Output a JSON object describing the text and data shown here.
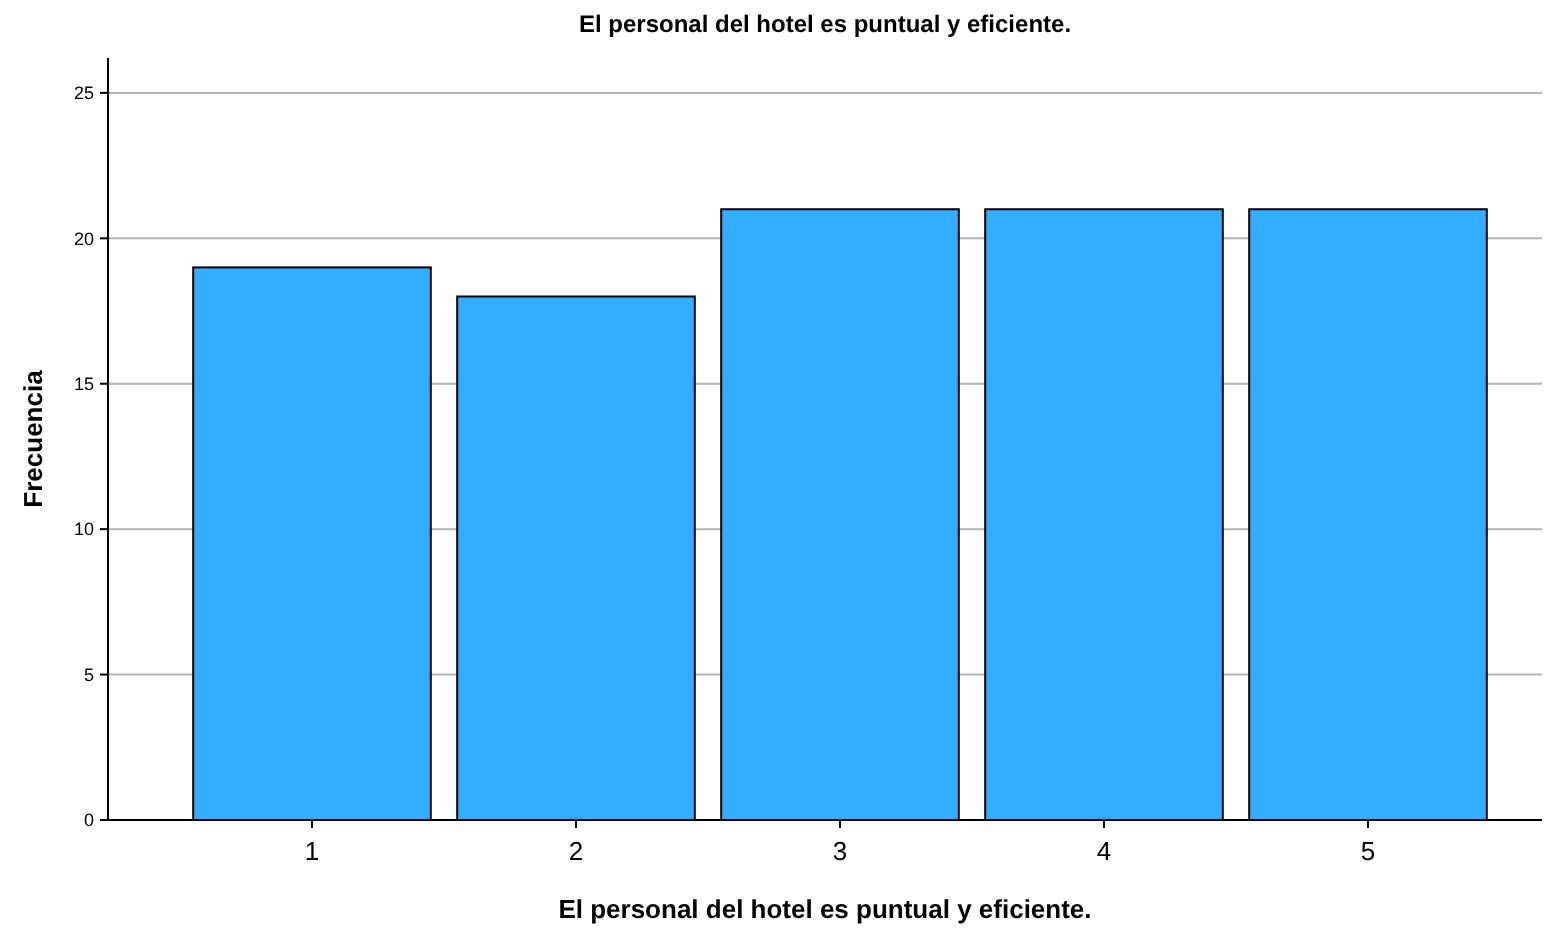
{
  "chart_data": {
    "type": "bar",
    "title": "El personal del hotel es puntual y eficiente.",
    "xlabel": "El personal del hotel es puntual y eficiente.",
    "ylabel": "Frecuencia",
    "categories": [
      "1",
      "2",
      "3",
      "4",
      "5"
    ],
    "values": [
      19,
      18,
      21,
      21,
      21
    ],
    "color": "#33adff",
    "ylim": [
      0,
      26.2
    ],
    "yticks": [
      0,
      5,
      10,
      15,
      20,
      25
    ],
    "grid": "y"
  }
}
